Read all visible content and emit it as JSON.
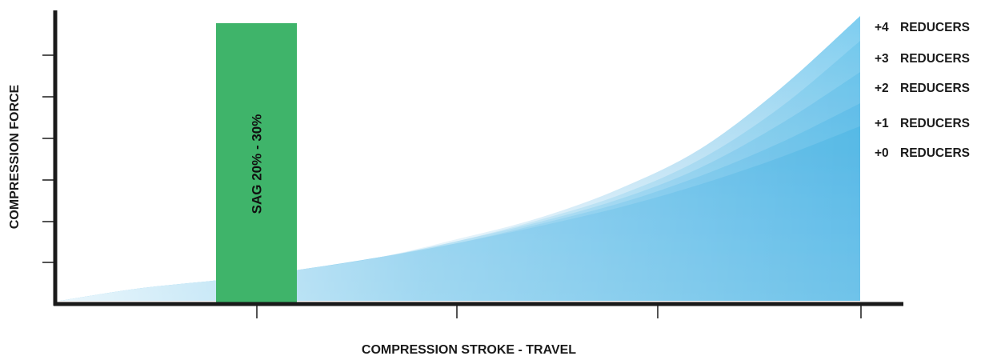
{
  "chart_data": {
    "type": "area",
    "xlabel": "COMPRESSION STROKE - TRAVEL",
    "ylabel": "COMPRESSION FORCE",
    "x_range": [
      0,
      100
    ],
    "y_range": [
      0,
      100
    ],
    "x_ticks": [
      25,
      50,
      75,
      100
    ],
    "y_ticks": [
      15,
      30,
      45,
      60,
      75,
      90
    ],
    "series": [
      {
        "name": "+0 REDUCERS",
        "x": [
          0,
          10,
          20,
          30,
          40,
          50,
          60,
          70,
          80,
          90,
          100
        ],
        "y": [
          0,
          6,
          10,
          15,
          21,
          28,
          36,
          45,
          56,
          69,
          84
        ]
      },
      {
        "name": "+1 REDUCERS",
        "x": [
          0,
          10,
          20,
          30,
          40,
          50,
          60,
          70,
          80,
          90,
          100
        ],
        "y": [
          0,
          6,
          10,
          15,
          21,
          28,
          37,
          47,
          60,
          76,
          95
        ]
      },
      {
        "name": "+2 REDUCERS",
        "x": [
          0,
          10,
          20,
          30,
          40,
          50,
          60,
          70,
          80,
          90,
          100
        ],
        "y": [
          0,
          6,
          10,
          15,
          21,
          29,
          38,
          49,
          64,
          85,
          110
        ]
      },
      {
        "name": "+3 REDUCERS",
        "x": [
          0,
          10,
          20,
          30,
          40,
          50,
          60,
          70,
          80,
          90,
          100
        ],
        "y": [
          0,
          6,
          10,
          15,
          21,
          29,
          39,
          51,
          68,
          93,
          125
        ]
      },
      {
        "name": "+4 REDUCERS",
        "x": [
          0,
          10,
          20,
          30,
          40,
          50,
          60,
          70,
          80,
          90,
          100
        ],
        "y": [
          0,
          6,
          10,
          15,
          21,
          30,
          40,
          54,
          73,
          102,
          137
        ]
      }
    ],
    "sag_band": {
      "label": "SAG 20% - 30%",
      "x_start": 20,
      "x_end": 30,
      "color": "#3fb46a"
    },
    "colors": {
      "curve_light": "#c9e6f5",
      "curve_dark": "#1aa3e0",
      "axis": "#1a1a1a"
    },
    "grid": false
  }
}
